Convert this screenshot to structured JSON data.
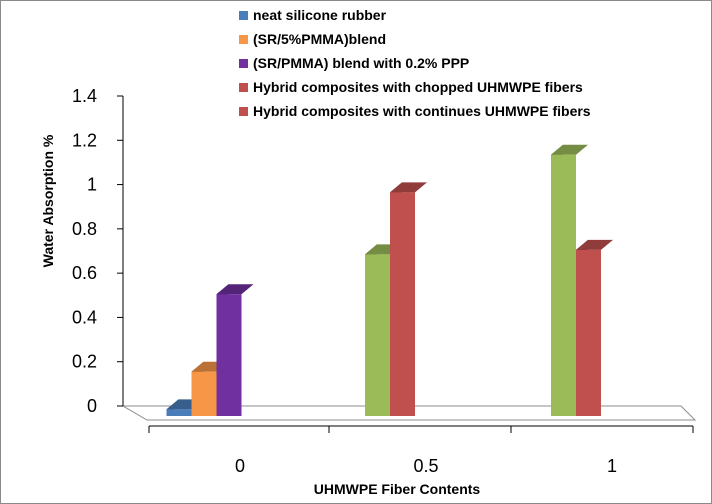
{
  "chart_data": {
    "type": "bar",
    "style": "3d-clustered-column",
    "title": "",
    "xlabel": "UHMWPE Fiber Contents",
    "ylabel": "Water Absorption %",
    "ylim": [
      0,
      1.4
    ],
    "yticks": [
      "0",
      "0.2",
      "0.4",
      "0.6",
      "0.8",
      "1",
      "1.2",
      "1.4"
    ],
    "categories": [
      "0",
      "0.5",
      "1"
    ],
    "grid": false,
    "legend_position": "top",
    "series": [
      {
        "name": "neat silicone rubber",
        "color": "#4a7ebb",
        "values": [
          0.03,
          null,
          null
        ]
      },
      {
        "name": "(SR/5%PMMA)blend",
        "color": "#f79646",
        "values": [
          0.2,
          null,
          null
        ]
      },
      {
        "name": "(SR/PMMA) blend with 0.2% PPP",
        "color": "#7030a0",
        "values": [
          0.55,
          null,
          null
        ]
      },
      {
        "name": "Hybrid composites with chopped UHMWPE fibers",
        "color": "#c0504d",
        "bar_color": "#9bbb59",
        "values": [
          null,
          0.73,
          1.18
        ]
      },
      {
        "name": "Hybrid composites with continues UHMWPE fibers",
        "color": "#c0504d",
        "values": [
          null,
          1.01,
          0.75
        ]
      }
    ]
  }
}
